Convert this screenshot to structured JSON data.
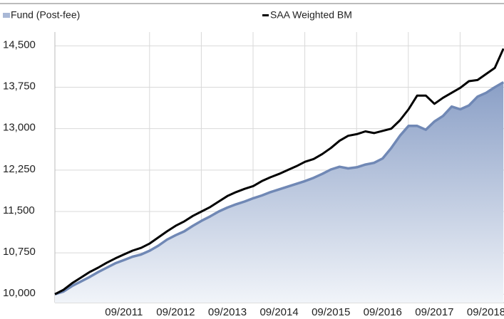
{
  "chart_data": {
    "type": "area_line",
    "categories": [
      null,
      null,
      null,
      null,
      null,
      null,
      null,
      null,
      "09/2011",
      null,
      null,
      null,
      null,
      null,
      "09/2012",
      null,
      null,
      null,
      null,
      null,
      "09/2013",
      null,
      null,
      null,
      null,
      null,
      "09/2014",
      null,
      null,
      null,
      null,
      null,
      "09/2015",
      null,
      null,
      null,
      null,
      null,
      "09/2016",
      null,
      null,
      null,
      null,
      null,
      "09/2017",
      null,
      null,
      null,
      null,
      null,
      "09/2018",
      null,
      null
    ],
    "series": [
      {
        "name": "Fund (Post-fee)",
        "kind": "area",
        "color": "#7088b5",
        "values": [
          10000,
          10050,
          10150,
          10230,
          10310,
          10400,
          10480,
          10560,
          10620,
          10680,
          10720,
          10790,
          10880,
          10990,
          11070,
          11140,
          11240,
          11330,
          11410,
          11500,
          11570,
          11630,
          11680,
          11740,
          11790,
          11850,
          11900,
          11950,
          12000,
          12050,
          12110,
          12180,
          12260,
          12310,
          12280,
          12300,
          12350,
          12380,
          12460,
          12650,
          12870,
          13050,
          13050,
          12980,
          13130,
          13230,
          13400,
          13350,
          13420,
          13580,
          13650,
          13750,
          13840
        ]
      },
      {
        "name": "SAA Weighted BM",
        "kind": "line",
        "color": "#000000",
        "values": [
          10000,
          10080,
          10200,
          10300,
          10400,
          10480,
          10570,
          10650,
          10720,
          10790,
          10840,
          10920,
          11030,
          11140,
          11240,
          11320,
          11420,
          11500,
          11580,
          11680,
          11780,
          11850,
          11910,
          11960,
          12050,
          12120,
          12180,
          12250,
          12320,
          12400,
          12450,
          12540,
          12650,
          12780,
          12870,
          12900,
          12950,
          12920,
          12960,
          13000,
          13150,
          13350,
          13600,
          13600,
          13450,
          13560,
          13650,
          13740,
          13860,
          13880,
          13990,
          14100,
          14450
        ]
      }
    ],
    "ylim": [
      9900,
      14750
    ],
    "yticks": [
      {
        "value": 10000,
        "label": "10,000"
      },
      {
        "value": 10750,
        "label": "10,750"
      },
      {
        "value": 11500,
        "label": "11,500"
      },
      {
        "value": 12250,
        "label": "12,250"
      },
      {
        "value": 13000,
        "label": "13,000"
      },
      {
        "value": 13750,
        "label": "13,750"
      },
      {
        "value": 14500,
        "label": "14,500"
      }
    ],
    "grid": true
  }
}
